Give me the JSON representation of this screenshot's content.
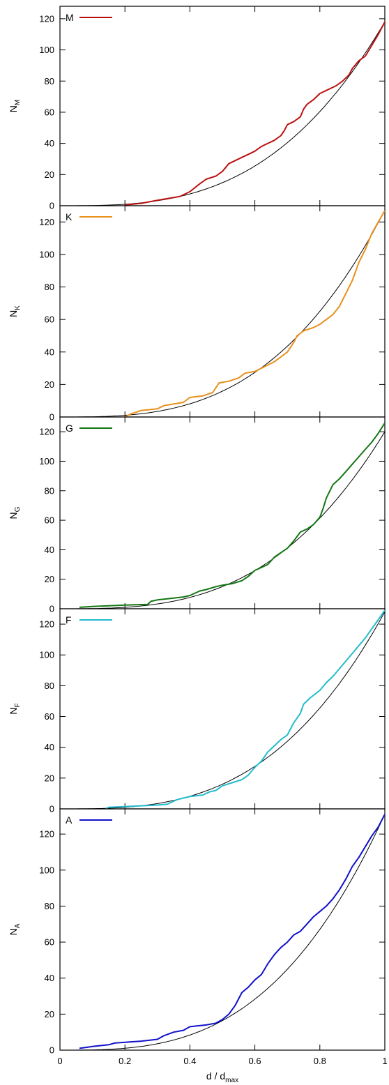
{
  "chart_data": [
    {
      "type": "line",
      "legend": "M",
      "ylabel_main": "N",
      "ylabel_sub": "M",
      "color": "#bb1111",
      "xlim": [
        0,
        1
      ],
      "ylim": [
        0,
        128
      ],
      "yticks": [
        0,
        20,
        40,
        60,
        80,
        100,
        120
      ],
      "yticklabels": [
        "0",
        "20",
        "40",
        "60",
        "80",
        "100",
        "120"
      ],
      "reference_curve": "N = Nmax * (d/dmax)^3",
      "reference_max": 118,
      "series": [
        {
          "x": [
            0.2,
            0.25,
            0.3,
            0.33,
            0.37,
            0.4,
            0.43,
            0.45,
            0.48,
            0.5,
            0.52,
            0.54,
            0.56,
            0.58,
            0.6,
            0.62,
            0.64,
            0.66,
            0.68,
            0.69,
            0.7,
            0.72,
            0.74,
            0.75,
            0.76,
            0.78,
            0.8,
            0.82,
            0.85,
            0.87,
            0.89,
            0.9,
            0.92,
            0.94,
            0.96,
            0.98,
            1.0
          ],
          "y": [
            0.5,
            1.5,
            3.5,
            4.5,
            6,
            9,
            14,
            17,
            19,
            22,
            27,
            29,
            31,
            33,
            35,
            38,
            40,
            42,
            45,
            48,
            52,
            54,
            57,
            62,
            65,
            68,
            72,
            74,
            77,
            80,
            84,
            88,
            93,
            96,
            103,
            110,
            118
          ]
        }
      ]
    },
    {
      "type": "line",
      "legend": "K",
      "ylabel_main": "N",
      "ylabel_sub": "K",
      "color": "#e8901c",
      "xlim": [
        0,
        1
      ],
      "ylim": [
        0,
        130
      ],
      "yticks": [
        0,
        20,
        40,
        60,
        80,
        100,
        120
      ],
      "yticklabels": [
        "0",
        "20",
        "40",
        "60",
        "80",
        "100",
        "120"
      ],
      "reference_curve": "N = Nmax * (d/dmax)^3",
      "reference_max": 127,
      "series": [
        {
          "x": [
            0.2,
            0.22,
            0.25,
            0.3,
            0.32,
            0.35,
            0.38,
            0.4,
            0.44,
            0.47,
            0.49,
            0.52,
            0.55,
            0.57,
            0.6,
            0.62,
            0.64,
            0.66,
            0.68,
            0.7,
            0.72,
            0.73,
            0.75,
            0.78,
            0.8,
            0.82,
            0.84,
            0.86,
            0.88,
            0.9,
            0.92,
            0.94,
            0.96,
            0.98,
            1.0
          ],
          "y": [
            0,
            2,
            4,
            5,
            7,
            8,
            9,
            12,
            13,
            15,
            21,
            22,
            24,
            27,
            28,
            30,
            32,
            34,
            37,
            40,
            46,
            50,
            53,
            55,
            57,
            60,
            63,
            68,
            76,
            84,
            95,
            103,
            113,
            120,
            127
          ]
        }
      ]
    },
    {
      "type": "line",
      "legend": "G",
      "ylabel_main": "N",
      "ylabel_sub": "G",
      "color": "#137713",
      "xlim": [
        0,
        1
      ],
      "ylim": [
        0,
        130
      ],
      "yticks": [
        0,
        20,
        40,
        60,
        80,
        100,
        120
      ],
      "yticklabels": [
        "0",
        "20",
        "40",
        "60",
        "80",
        "100",
        "120"
      ],
      "reference_curve": "N = Nmax * (d/dmax)^3",
      "reference_max": 120,
      "series": [
        {
          "x": [
            0.06,
            0.1,
            0.15,
            0.2,
            0.27,
            0.28,
            0.3,
            0.34,
            0.38,
            0.4,
            0.43,
            0.45,
            0.48,
            0.5,
            0.53,
            0.56,
            0.58,
            0.6,
            0.62,
            0.64,
            0.66,
            0.68,
            0.7,
            0.72,
            0.74,
            0.76,
            0.78,
            0.8,
            0.81,
            0.82,
            0.84,
            0.86,
            0.88,
            0.9,
            0.92,
            0.94,
            0.96,
            0.98,
            1.0
          ],
          "y": [
            1,
            1.5,
            2,
            2.5,
            3,
            5,
            6,
            7,
            8,
            9,
            12,
            13,
            15,
            16,
            17,
            19,
            22,
            26,
            28,
            30,
            35,
            38,
            41,
            46,
            52,
            54,
            57,
            62,
            68,
            75,
            84,
            88,
            93,
            98,
            103,
            108,
            113,
            119,
            126
          ]
        }
      ]
    },
    {
      "type": "line",
      "legend": "F",
      "ylabel_main": "N",
      "ylabel_sub": "F",
      "color": "#22bbcc",
      "xlim": [
        0,
        1
      ],
      "ylim": [
        0,
        130
      ],
      "yticks": [
        0,
        20,
        40,
        60,
        80,
        100,
        120
      ],
      "yticklabels": [
        "0",
        "20",
        "40",
        "60",
        "80",
        "100",
        "120"
      ],
      "reference_curve": "N = Nmax * (d/dmax)^3",
      "reference_max": 128,
      "series": [
        {
          "x": [
            0.14,
            0.15,
            0.2,
            0.25,
            0.3,
            0.33,
            0.36,
            0.38,
            0.4,
            0.44,
            0.46,
            0.48,
            0.5,
            0.53,
            0.56,
            0.58,
            0.6,
            0.62,
            0.64,
            0.66,
            0.68,
            0.7,
            0.72,
            0.74,
            0.75,
            0.77,
            0.8,
            0.82,
            0.84,
            0.86,
            0.88,
            0.9,
            0.92,
            0.94,
            0.96,
            0.98,
            1.0
          ],
          "y": [
            0,
            1,
            1.5,
            2,
            2.5,
            3,
            6,
            7,
            8,
            9,
            11,
            12,
            15,
            17,
            19,
            22,
            27,
            31,
            37,
            41,
            45,
            48,
            56,
            62,
            68,
            72,
            77,
            82,
            86,
            91,
            96,
            101,
            106,
            111,
            117,
            123,
            129
          ]
        }
      ]
    },
    {
      "type": "line",
      "legend": "A",
      "ylabel_main": "N",
      "ylabel_sub": "A",
      "color": "#1111cc",
      "xlim": [
        0,
        1
      ],
      "ylim": [
        0,
        134
      ],
      "yticks": [
        0,
        20,
        40,
        60,
        80,
        100,
        120
      ],
      "yticklabels": [
        "0",
        "20",
        "40",
        "60",
        "80",
        "100",
        "120"
      ],
      "xticks": [
        0,
        0.2,
        0.4,
        0.6,
        0.8,
        1
      ],
      "xticklabels": [
        "0",
        "0.2",
        "0.4",
        "0.6",
        "0.8",
        "1"
      ],
      "xlabel_main": "d / d",
      "xlabel_sub": "max",
      "reference_curve": "N = Nmax * (d/dmax)^3",
      "reference_max": 131,
      "series": [
        {
          "x": [
            0.06,
            0.1,
            0.15,
            0.17,
            0.25,
            0.3,
            0.32,
            0.35,
            0.38,
            0.4,
            0.45,
            0.48,
            0.5,
            0.52,
            0.54,
            0.56,
            0.58,
            0.6,
            0.62,
            0.64,
            0.66,
            0.68,
            0.7,
            0.72,
            0.74,
            0.76,
            0.78,
            0.8,
            0.82,
            0.84,
            0.86,
            0.88,
            0.9,
            0.92,
            0.94,
            0.96,
            0.98,
            1.0
          ],
          "y": [
            1,
            2,
            3,
            4,
            5,
            6,
            8,
            10,
            11,
            13,
            14,
            15,
            17,
            20,
            25,
            32,
            35,
            39,
            42,
            48,
            53,
            57,
            60,
            64,
            66,
            70,
            74,
            77,
            80,
            84,
            89,
            95,
            102,
            107,
            113,
            119,
            124,
            131
          ]
        }
      ]
    }
  ]
}
